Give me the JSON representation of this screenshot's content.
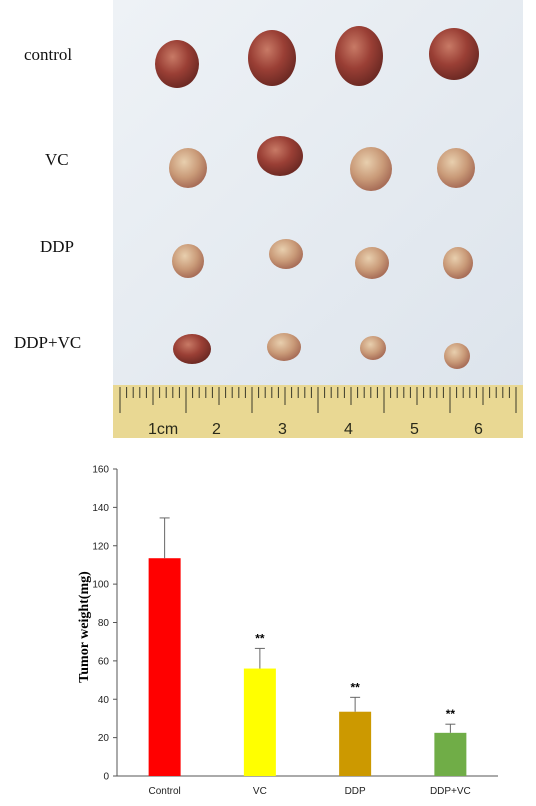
{
  "photo": {
    "row_labels": [
      "control",
      "VC",
      "DDP",
      "DDP+VC"
    ],
    "ruler_labels": [
      "1cm",
      "2",
      "3",
      "4",
      "5",
      "6"
    ]
  },
  "chart_data": {
    "type": "bar",
    "categories": [
      "Control",
      "VC",
      "DDP",
      "DDP+VC"
    ],
    "values": [
      113.5,
      56,
      33.5,
      22.5
    ],
    "errors": [
      21,
      10.5,
      7.5,
      4.5
    ],
    "annotations": [
      "",
      "**",
      "**",
      "**"
    ],
    "colors": [
      "#ff0000",
      "#ffff00",
      "#cc9900",
      "#70ad47"
    ],
    "title": "",
    "xlabel": "",
    "ylabel": "Tumor weight(mg)",
    "ylim": [
      0,
      160
    ],
    "yticks": [
      0,
      20,
      40,
      60,
      80,
      100,
      120,
      140,
      160
    ],
    "grid": false
  }
}
